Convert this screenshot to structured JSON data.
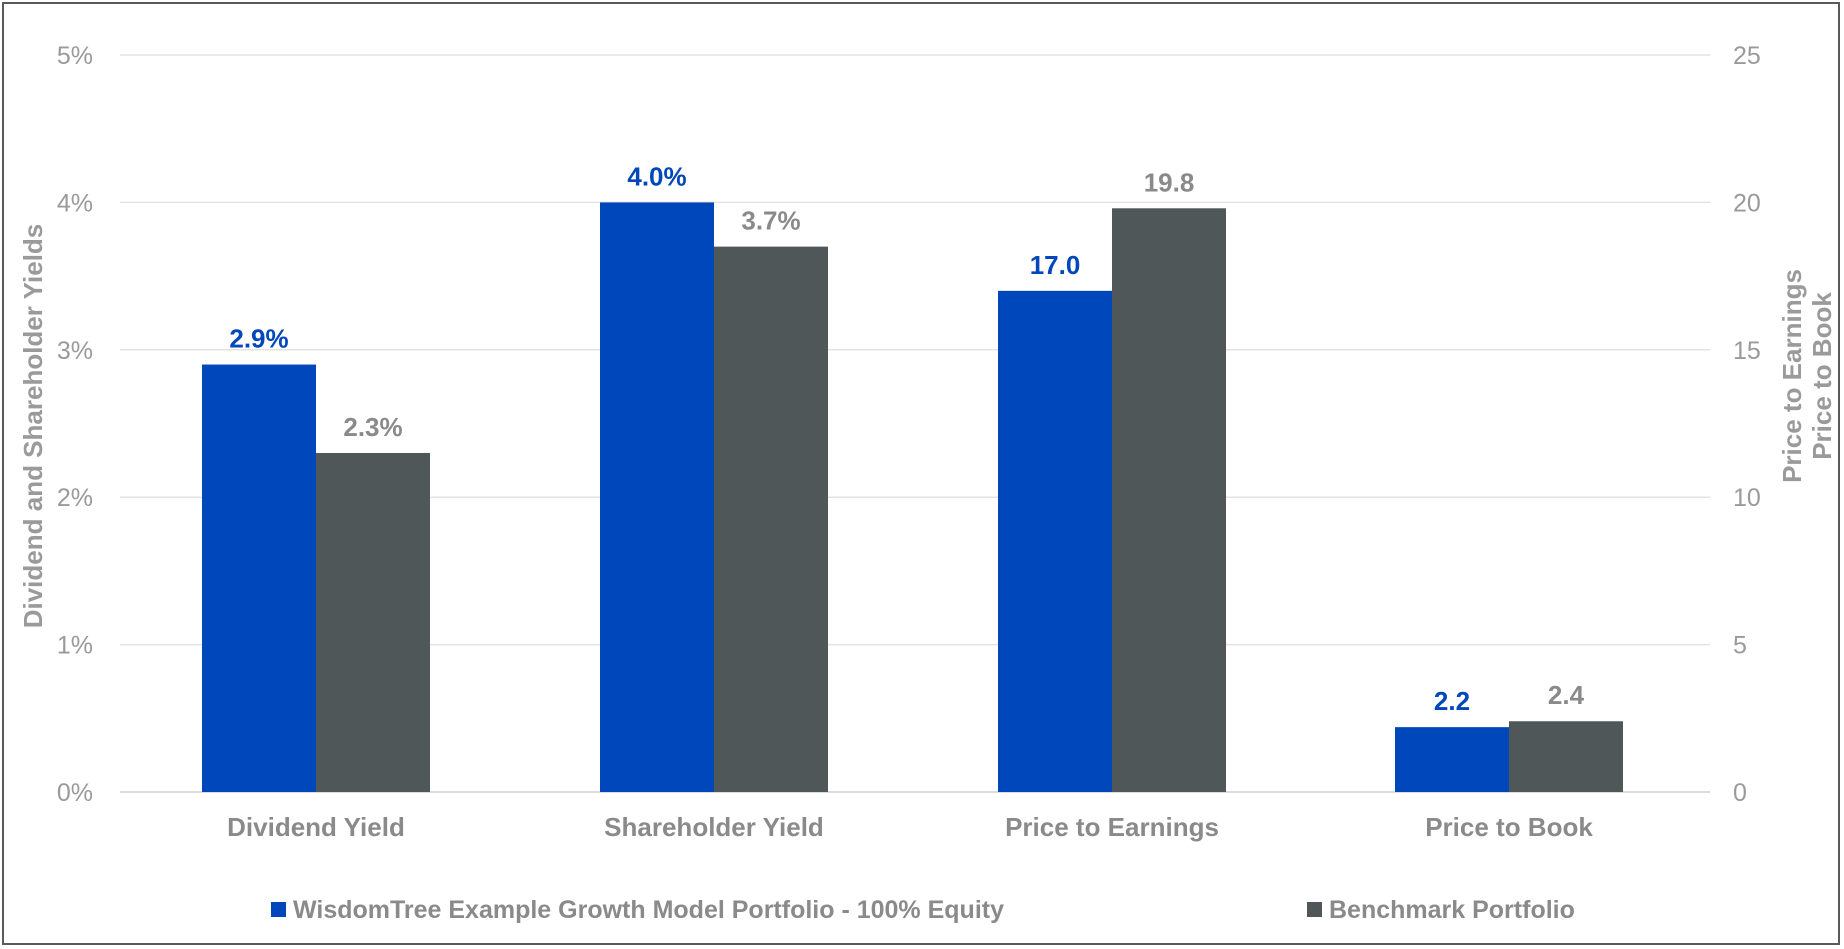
{
  "chart_data": {
    "type": "bar",
    "categories": [
      "Dividend Yield",
      "Shareholder Yield",
      "Price to Earnings",
      "Price to Book"
    ],
    "series": [
      {
        "name": "WisdomTree Example Growth Model Portfolio - 100% Equity",
        "color": "#0047bb",
        "values": [
          2.9,
          4.0,
          17.0,
          2.2
        ],
        "labels": [
          "2.9%",
          "4.0%",
          "17.0",
          "2.2"
        ]
      },
      {
        "name": "Benchmark Portfolio",
        "color": "#505759",
        "values": [
          2.3,
          3.7,
          19.8,
          2.4
        ],
        "labels": [
          "2.3%",
          "3.7%",
          "19.8",
          "2.4"
        ]
      }
    ],
    "category_axis": [
      "left",
      "left",
      "right",
      "right"
    ],
    "y_left": {
      "label": "Dividend and Shareholder Yields",
      "ylim": [
        0,
        5
      ],
      "ticks": [
        "0%",
        "1%",
        "2%",
        "3%",
        "4%",
        "5%"
      ]
    },
    "y_right": {
      "label_lines": [
        "Price to Earnings",
        "Price to Book"
      ],
      "ylim": [
        0,
        25
      ],
      "ticks": [
        "0",
        "5",
        "10",
        "15",
        "20",
        "25"
      ]
    },
    "grid": true,
    "legend_position": "bottom"
  }
}
